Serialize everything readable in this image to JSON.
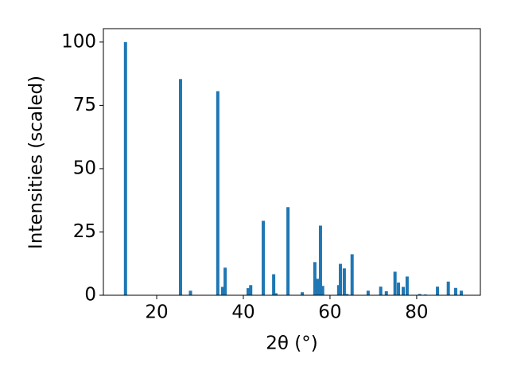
{
  "chart_data": {
    "type": "bar",
    "xlabel": "2θ (°)",
    "ylabel": "Intensities (scaled)",
    "color": "#1f77b4",
    "x": [
      12.8,
      25.5,
      27.8,
      34.1,
      35.2,
      35.8,
      41.1,
      41.7,
      44.6,
      47.0,
      47.5,
      50.3,
      53.6,
      56.5,
      57.1,
      57.8,
      58.3,
      62.0,
      62.4,
      63.3,
      63.9,
      65.1,
      68.8,
      71.7,
      73.0,
      75.0,
      75.8,
      76.9,
      77.8,
      80.7,
      82.0,
      84.8,
      87.3,
      89.0,
      90.3
    ],
    "values": [
      100,
      85.4,
      1.8,
      80.6,
      3.3,
      10.9,
      2.8,
      4,
      29.4,
      8.3,
      0.8,
      34.8,
      1.2,
      13.1,
      6.5,
      27.5,
      3.7,
      4,
      12.4,
      10.6,
      0.5,
      16.2,
      1.8,
      3.4,
      1.6,
      9.3,
      5,
      3.3,
      7.4,
      0.5,
      0.3,
      3.4,
      5.4,
      2.9,
      1.8
    ],
    "xlim": [
      7.7,
      94.7
    ],
    "xticks": [
      20,
      40,
      60,
      80
    ],
    "ylim": [
      0,
      105.3
    ],
    "yticks": [
      0,
      25,
      50,
      75,
      100
    ]
  }
}
